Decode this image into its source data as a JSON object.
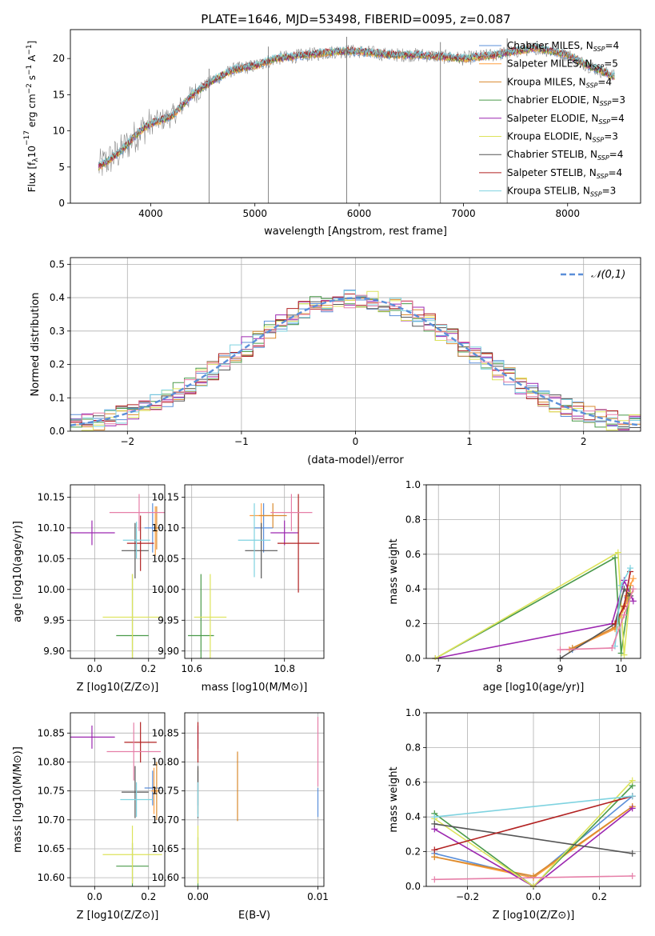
{
  "figure": {
    "title": "PLATE=1646, MJD=53498, FIBERID=0095, z=0.087"
  },
  "chart_data": [
    {
      "id": "spectrum",
      "type": "line",
      "xlabel": "wavelength [Angstrom, rest frame]",
      "ylabel": "Flux [f_λ 10^-17 erg cm^-2 s^-1 A^-1]",
      "xlim": [
        3230,
        8700
      ],
      "ylim": [
        0,
        24
      ],
      "xticks": [
        4000,
        5000,
        6000,
        7000,
        8000
      ],
      "yticks": [
        0,
        5,
        10,
        15,
        20
      ],
      "legend_position": "right",
      "series": [
        {
          "name": "Chabrier MILES, N_SSP=4",
          "color": "#5b8fd9"
        },
        {
          "name": "Salpeter MILES, N_SSP=5",
          "color": "#ff9f40"
        },
        {
          "name": "Kroupa MILES, N_SSP=4",
          "color": "#d98a2e"
        },
        {
          "name": "Chabrier ELODIE, N_SSP=3",
          "color": "#4a9a4a"
        },
        {
          "name": "Salpeter ELODIE, N_SSP=4",
          "color": "#9c27b0"
        },
        {
          "name": "Kroupa ELODIE, N_SSP=3",
          "color": "#dde35b"
        },
        {
          "name": "Chabrier STELIB, N_SSP=4",
          "color": "#555555"
        },
        {
          "name": "Salpeter STELIB, N_SSP=4",
          "color": "#b22222"
        },
        {
          "name": "Kroupa STELIB, N_SSP=3",
          "color": "#7fd3e0"
        }
      ],
      "continuum": {
        "x": [
          3500,
          3700,
          3900,
          4000,
          4200,
          4400,
          4600,
          4800,
          5000,
          5200,
          5500,
          5800,
          6000,
          6300,
          6600,
          7000,
          7300,
          7700,
          8000,
          8200,
          8450
        ],
        "y": [
          5,
          7,
          10,
          11,
          12,
          15,
          17,
          18.5,
          19,
          20,
          20.5,
          21,
          21,
          20.5,
          20.5,
          20,
          20.5,
          21.5,
          20.5,
          19,
          17.5
        ]
      },
      "spike_lines_x": [
        4560,
        5130,
        5880,
        6780,
        7420
      ]
    },
    {
      "id": "residuals",
      "type": "histogram",
      "xlabel": "(data-model)/error",
      "ylabel": "Normed distribution",
      "xlim": [
        -2.5,
        2.5
      ],
      "ylim": [
        0,
        0.52
      ],
      "xticks": [
        -2,
        -1,
        0,
        1,
        2
      ],
      "yticks": [
        0,
        0.1,
        0.2,
        0.3,
        0.4,
        0.5
      ],
      "grid": true,
      "legend": "𝒩(0,1)",
      "legend_position": "top-right",
      "bin_width": 0.1,
      "colors": [
        "#5b8fd9",
        "#d98a2e",
        "#4a9a4a",
        "#9c27b0",
        "#dde35b",
        "#555555",
        "#b22222",
        "#7fd3e0",
        "#e67fa8"
      ],
      "reference_curve": "normal(0,1)",
      "reference_color": "#5b8fd9"
    },
    {
      "id": "age-vs-Z",
      "type": "scatter",
      "xlabel": "Z [log10(Z/Z⊙)]",
      "ylabel": "age [log10(age/yr)]",
      "xlim": [
        -0.09,
        0.26
      ],
      "ylim": [
        9.888,
        10.17
      ],
      "xticks": [
        0.0,
        0.2
      ],
      "yticks": [
        9.9,
        9.95,
        10.0,
        10.05,
        10.1,
        10.15
      ],
      "points": [
        {
          "x": 0.215,
          "y": 10.1,
          "xerr": 0.03,
          "yerr": 0.04,
          "color": "#5b8fd9"
        },
        {
          "x": 0.225,
          "y": 10.095,
          "xerr": 0.01,
          "yerr": 0.04,
          "color": "#ff9f40"
        },
        {
          "x": 0.23,
          "y": 10.1,
          "xerr": 0.008,
          "yerr": 0.035,
          "color": "#d98a2e"
        },
        {
          "x": 0.14,
          "y": 9.925,
          "xerr": 0.06,
          "yerr": 0.1,
          "color": "#4a9a4a"
        },
        {
          "x": -0.01,
          "y": 10.092,
          "xerr": 0.085,
          "yerr": 0.02,
          "color": "#9c27b0"
        },
        {
          "x": 0.14,
          "y": 9.955,
          "xerr": 0.11,
          "yerr": 0.07,
          "color": "#dde35b"
        },
        {
          "x": 0.15,
          "y": 10.063,
          "xerr": 0.05,
          "yerr": 0.045,
          "color": "#555555"
        },
        {
          "x": 0.17,
          "y": 10.075,
          "xerr": 0.05,
          "yerr": 0.045,
          "color": "#b22222"
        },
        {
          "x": 0.155,
          "y": 10.08,
          "xerr": 0.05,
          "yerr": 0.03,
          "color": "#7fd3e0"
        },
        {
          "x": 0.165,
          "y": 10.125,
          "xerr": 0.11,
          "yerr": 0.03,
          "color": "#e67fa8"
        }
      ]
    },
    {
      "id": "age-vs-mass",
      "type": "scatter",
      "xlabel": "mass [log10(M/M⊙)]",
      "ylabel": "",
      "xlim": [
        10.585,
        10.885
      ],
      "ylim": [
        9.888,
        10.17
      ],
      "xticks": [
        10.6,
        10.8
      ],
      "yticks": [
        9.9,
        9.95,
        10.0,
        10.05,
        10.1,
        10.15
      ],
      "points": [
        {
          "x": 10.755,
          "y": 10.1,
          "xerr": 0.02,
          "yerr": 0.04,
          "color": "#5b8fd9"
        },
        {
          "x": 10.75,
          "y": 10.12,
          "xerr": 0.025,
          "yerr": 0.02,
          "color": "#ff9f40"
        },
        {
          "x": 10.775,
          "y": 10.12,
          "xerr": 0.03,
          "yerr": 0.02,
          "color": "#d98a2e"
        },
        {
          "x": 10.62,
          "y": 9.925,
          "xerr": 0.028,
          "yerr": 0.1,
          "color": "#4a9a4a"
        },
        {
          "x": 10.8,
          "y": 10.092,
          "xerr": 0.03,
          "yerr": 0.02,
          "color": "#9c27b0"
        },
        {
          "x": 10.64,
          "y": 9.955,
          "xerr": 0.035,
          "yerr": 0.07,
          "color": "#dde35b"
        },
        {
          "x": 10.75,
          "y": 10.063,
          "xerr": 0.035,
          "yerr": 0.045,
          "color": "#555555"
        },
        {
          "x": 10.83,
          "y": 10.075,
          "xerr": 0.045,
          "yerr": 0.08,
          "color": "#b22222"
        },
        {
          "x": 10.735,
          "y": 10.08,
          "xerr": 0.035,
          "yerr": 0.06,
          "color": "#7fd3e0"
        },
        {
          "x": 10.815,
          "y": 10.125,
          "xerr": 0.045,
          "yerr": 0.03,
          "color": "#e67fa8"
        }
      ]
    },
    {
      "id": "weight-vs-age",
      "type": "line",
      "xlabel": "age [log10(age/yr)]",
      "ylabel": "mass weight",
      "xlim": [
        6.8,
        10.32
      ],
      "ylim": [
        0,
        1.0
      ],
      "xticks": [
        7,
        8,
        9,
        10
      ],
      "yticks": [
        0.0,
        0.2,
        0.4,
        0.6,
        0.8,
        1.0
      ],
      "grid": true,
      "series": [
        {
          "color": "#5b8fd9",
          "x": [
            9.2,
            9.9,
            10.1,
            10.15
          ],
          "y": [
            0.05,
            0.18,
            0.35,
            0.4
          ]
        },
        {
          "color": "#ff9f40",
          "x": [
            9.15,
            9.9,
            10.1,
            10.15,
            10.2
          ],
          "y": [
            0.05,
            0.17,
            0.33,
            0.42,
            0.46
          ]
        },
        {
          "color": "#d98a2e",
          "x": [
            9.2,
            9.9,
            10.1,
            10.15
          ],
          "y": [
            0.06,
            0.18,
            0.36,
            0.4
          ]
        },
        {
          "color": "#4a9a4a",
          "x": [
            6.95,
            9.9,
            10.0,
            10.15
          ],
          "y": [
            0.0,
            0.58,
            0.03,
            0.4
          ]
        },
        {
          "color": "#9c27b0",
          "x": [
            6.95,
            9.85,
            10.05,
            10.2
          ],
          "y": [
            0.0,
            0.2,
            0.45,
            0.33
          ]
        },
        {
          "color": "#dde35b",
          "x": [
            6.95,
            9.95,
            10.05,
            10.15
          ],
          "y": [
            0.0,
            0.61,
            0.02,
            0.38
          ]
        },
        {
          "color": "#555555",
          "x": [
            9.0,
            9.9,
            10.05,
            10.15
          ],
          "y": [
            0.0,
            0.2,
            0.4,
            0.36
          ]
        },
        {
          "color": "#b22222",
          "x": [
            9.9,
            10.05,
            10.15
          ],
          "y": [
            0.2,
            0.3,
            0.5
          ]
        },
        {
          "color": "#7fd3e0",
          "x": [
            9.9,
            10.0,
            10.15
          ],
          "y": [
            0.07,
            0.42,
            0.52
          ]
        },
        {
          "color": "#e67fa8",
          "x": [
            9.0,
            9.85,
            10.05,
            10.2
          ],
          "y": [
            0.05,
            0.06,
            0.25,
            0.4
          ]
        }
      ]
    },
    {
      "id": "mass-vs-Z",
      "type": "scatter",
      "xlabel": "Z [log10(Z/Z⊙)]",
      "ylabel": "mass [log10(M/M⊙)]",
      "xlim": [
        -0.09,
        0.26
      ],
      "ylim": [
        10.585,
        10.885
      ],
      "xticks": [
        0.0,
        0.2
      ],
      "yticks": [
        10.6,
        10.65,
        10.7,
        10.75,
        10.8,
        10.85
      ],
      "points": [
        {
          "x": 0.215,
          "y": 10.755,
          "xerr": 0.03,
          "yerr": 0.03,
          "color": "#5b8fd9"
        },
        {
          "x": 0.22,
          "y": 10.75,
          "xerr": 0.01,
          "yerr": 0.04,
          "color": "#ff9f40"
        },
        {
          "x": 0.23,
          "y": 10.75,
          "xerr": 0.008,
          "yerr": 0.05,
          "color": "#d98a2e"
        },
        {
          "x": 0.14,
          "y": 10.62,
          "xerr": 0.06,
          "yerr": 0.04,
          "color": "#4a9a4a"
        },
        {
          "x": -0.01,
          "y": 10.843,
          "xerr": 0.085,
          "yerr": 0.02,
          "color": "#9c27b0"
        },
        {
          "x": 0.14,
          "y": 10.64,
          "xerr": 0.11,
          "yerr": 0.05,
          "color": "#dde35b"
        },
        {
          "x": 0.15,
          "y": 10.748,
          "xerr": 0.05,
          "yerr": 0.045,
          "color": "#555555"
        },
        {
          "x": 0.17,
          "y": 10.834,
          "xerr": 0.06,
          "yerr": 0.035,
          "color": "#b22222"
        },
        {
          "x": 0.155,
          "y": 10.735,
          "xerr": 0.06,
          "yerr": 0.03,
          "color": "#7fd3e0"
        },
        {
          "x": 0.145,
          "y": 10.818,
          "xerr": 0.1,
          "yerr": 0.05,
          "color": "#e67fa8"
        }
      ]
    },
    {
      "id": "mass-vs-EBV",
      "type": "scatter",
      "xlabel": "E(B-V)",
      "ylabel": "",
      "xlim": [
        -0.0011,
        0.0105
      ],
      "ylim": [
        10.585,
        10.885
      ],
      "xticks": [
        0.0,
        0.01
      ],
      "yticks": [
        10.6,
        10.65,
        10.7,
        10.75,
        10.8,
        10.85
      ],
      "points": [
        {
          "x": 0.0,
          "y": 10.755,
          "xerr": 0,
          "yerr": 0.03,
          "color": "#5b8fd9"
        },
        {
          "x": 0.0,
          "y": 10.75,
          "xerr": 0,
          "yerr": 0.04,
          "color": "#ff9f40"
        },
        {
          "x": 0.0033,
          "y": 10.758,
          "xerr": 0,
          "yerr": 0.06,
          "color": "#d98a2e"
        },
        {
          "x": 0.0,
          "y": 10.62,
          "xerr": 0,
          "yerr": 0.05,
          "color": "#4a9a4a"
        },
        {
          "x": 0.0,
          "y": 10.843,
          "xerr": 0,
          "yerr": 0.02,
          "color": "#9c27b0"
        },
        {
          "x": 0.0,
          "y": 10.64,
          "xerr": 0,
          "yerr": 0.05,
          "color": "#dde35b"
        },
        {
          "x": 0.0,
          "y": 10.748,
          "xerr": 0,
          "yerr": 0.045,
          "color": "#555555"
        },
        {
          "x": 0.0,
          "y": 10.834,
          "xerr": 0,
          "yerr": 0.035,
          "color": "#b22222"
        },
        {
          "x": 0.0,
          "y": 10.735,
          "xerr": 0,
          "yerr": 0.03,
          "color": "#7fd3e0"
        },
        {
          "x": 0.01,
          "y": 10.818,
          "xerr": 0,
          "yerr": 0.06,
          "color": "#e67fa8"
        },
        {
          "x": 0.01,
          "y": 10.73,
          "xerr": 0,
          "yerr": 0.025,
          "color": "#5b8fd9"
        }
      ]
    },
    {
      "id": "weight-vs-Z",
      "type": "line",
      "xlabel": "Z [log10(Z/Z⊙)]",
      "ylabel": "mass weight",
      "xlim": [
        -0.325,
        0.325
      ],
      "ylim": [
        0,
        1.0
      ],
      "xticks": [
        -0.2,
        0.0,
        0.2
      ],
      "yticks": [
        0.0,
        0.2,
        0.4,
        0.6,
        0.8,
        1.0
      ],
      "grid": true,
      "series": [
        {
          "color": "#5b8fd9",
          "x": [
            -0.3,
            0.0,
            0.3
          ],
          "y": [
            0.19,
            0.05,
            0.52
          ]
        },
        {
          "color": "#ff9f40",
          "x": [
            -0.3,
            0.0,
            0.3
          ],
          "y": [
            0.17,
            0.05,
            0.46
          ]
        },
        {
          "color": "#d98a2e",
          "x": [
            -0.3,
            0.0,
            0.3
          ],
          "y": [
            0.17,
            0.06,
            0.46
          ]
        },
        {
          "color": "#4a9a4a",
          "x": [
            -0.3,
            0.0,
            0.3
          ],
          "y": [
            0.42,
            0.0,
            0.58
          ]
        },
        {
          "color": "#9c27b0",
          "x": [
            -0.3,
            0.0,
            0.3
          ],
          "y": [
            0.33,
            0.0,
            0.45
          ]
        },
        {
          "color": "#dde35b",
          "x": [
            -0.3,
            0.0,
            0.3
          ],
          "y": [
            0.39,
            0.0,
            0.61
          ]
        },
        {
          "color": "#555555",
          "x": [
            -0.3,
            0.3
          ],
          "y": [
            0.36,
            0.19
          ]
        },
        {
          "color": "#b22222",
          "x": [
            -0.3,
            0.3
          ],
          "y": [
            0.21,
            0.52
          ]
        },
        {
          "color": "#7fd3e0",
          "x": [
            -0.3,
            0.3
          ],
          "y": [
            0.4,
            0.52
          ]
        },
        {
          "color": "#e67fa8",
          "x": [
            -0.3,
            0.3
          ],
          "y": [
            0.04,
            0.06
          ]
        }
      ]
    }
  ]
}
